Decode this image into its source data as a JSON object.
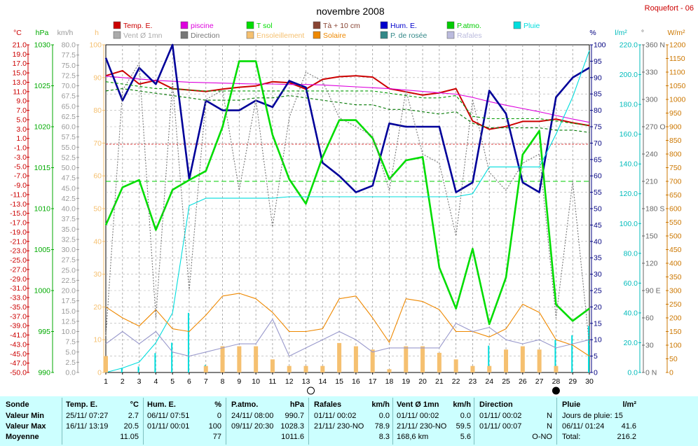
{
  "header": {
    "title": "novembre 2008",
    "station": "Roquefort - 06"
  },
  "chart_data": {
    "type": "line",
    "title": "novembre 2008",
    "x": [
      1,
      2,
      3,
      4,
      5,
      6,
      7,
      8,
      9,
      10,
      11,
      12,
      13,
      14,
      15,
      16,
      17,
      18,
      19,
      20,
      21,
      22,
      23,
      24,
      25,
      26,
      27,
      28,
      29,
      30
    ],
    "xticks": [
      "1",
      "2",
      "3",
      "4",
      "5",
      "6",
      "7",
      "8",
      "9",
      "10",
      "11",
      "12",
      "13",
      "14",
      "15",
      "16",
      "17",
      "18",
      "19",
      "20",
      "21",
      "22",
      "23",
      "24",
      "25",
      "26",
      "27",
      "28",
      "29",
      "30"
    ],
    "axes": {
      "temp": {
        "unit": "°C",
        "range": [
          -50,
          21
        ],
        "color": "#cc0000",
        "ticks": [
          "21.0",
          "19.0",
          "17.0",
          "15.0",
          "13.0",
          "11.0",
          "9.0",
          "7.0",
          "5.0",
          "3.0",
          "1.0",
          "-1.0",
          "-3.0",
          "-5.0",
          "-7.0",
          "-9.0",
          "-11.0",
          "-13.0",
          "-15.0",
          "-17.0",
          "-19.0",
          "-21.0",
          "-23.0",
          "-25.0",
          "-27.0",
          "-29.0",
          "-31.0",
          "-33.0",
          "-35.0",
          "-37.0",
          "-39.0",
          "-41.0",
          "-43.0",
          "-45.0",
          "-47.0",
          "-50.0"
        ]
      },
      "pressure": {
        "unit": "hPa",
        "range": [
          990,
          1030
        ],
        "color": "#00aa00",
        "ticks": [
          "1030",
          "1025",
          "1020",
          "1015",
          "1010",
          "1005",
          "1000",
          "995",
          "990"
        ]
      },
      "wind": {
        "unit": "km/h",
        "range": [
          0,
          80
        ],
        "color": "#999999",
        "ticks": [
          "80.0",
          "77.5",
          "75.0",
          "72.5",
          "70.0",
          "67.5",
          "65.0",
          "62.5",
          "60.0",
          "57.5",
          "55.0",
          "52.5",
          "50.0",
          "47.5",
          "45.0",
          "42.5",
          "40.0",
          "37.5",
          "35.0",
          "32.5",
          "30.0",
          "27.5",
          "25.0",
          "22.5",
          "20.0",
          "17.5",
          "15.0",
          "12.5",
          "10.0",
          "7.5",
          "5.0",
          "2.5",
          "0.0"
        ]
      },
      "sunshine": {
        "unit": "h",
        "range": [
          0,
          100
        ],
        "color": "#f5c070",
        "ticks": [
          "100",
          "90",
          "80",
          "70",
          "60",
          "50",
          "40",
          "30",
          "20",
          "10",
          "0"
        ]
      },
      "humidity": {
        "unit": "%",
        "range": [
          0,
          100
        ],
        "color": "#000080",
        "ticks": [
          "100",
          "95",
          "90",
          "85",
          "80",
          "75",
          "70",
          "65",
          "60",
          "55",
          "50",
          "45",
          "40",
          "35",
          "30",
          "25",
          "20",
          "15",
          "10",
          "5",
          "0"
        ]
      },
      "rain": {
        "unit": "l/m²",
        "range": [
          0,
          220
        ],
        "color": "#00bbbb",
        "ticks": [
          "220.0",
          "200.0",
          "180.0",
          "160.0",
          "140.0",
          "120.0",
          "100.0",
          "80.0",
          "60.0",
          "40.0",
          "20.0",
          "0.0"
        ]
      },
      "direction": {
        "unit": "°",
        "range": [
          0,
          360
        ],
        "color": "#666666",
        "ticks": [
          "360 N",
          "330",
          "300",
          "270 O",
          "240",
          "210",
          "180 S",
          "150",
          "120",
          "90 E",
          "60",
          "30",
          "0 N"
        ]
      },
      "solar": {
        "unit": "W/m²",
        "range": [
          0,
          1200
        ],
        "color": "#cc7700",
        "ticks": [
          "1200",
          "1150",
          "1100",
          "1050",
          "1000",
          "950",
          "900",
          "850",
          "800",
          "750",
          "700",
          "650",
          "600",
          "550",
          "500",
          "450",
          "400",
          "350",
          "300",
          "250",
          "200",
          "150",
          "100",
          "50",
          "0"
        ]
      }
    },
    "legend": [
      {
        "label": "Temp. E.",
        "color": "#cc0000"
      },
      {
        "label": "piscine",
        "color": "#dd00dd"
      },
      {
        "label": "T sol",
        "color": "#00dd00"
      },
      {
        "label": "Tà + 10 cm",
        "color": "#884433"
      },
      {
        "label": "Hum. E.",
        "color": "#0000cc"
      },
      {
        "label": "P.atmo.",
        "color": "#00cc00"
      },
      {
        "label": "Pluie",
        "color": "#00dddd"
      },
      {
        "label": "Vent Ø 1mn",
        "color": "#aaaaaa"
      },
      {
        "label": "Direction",
        "color": "#777777"
      },
      {
        "label": "Ensoleillement",
        "color": "#f5c070"
      },
      {
        "label": "Solaire",
        "color": "#ee8800"
      },
      {
        "label": "P. de rosée",
        "color": "#338888"
      },
      {
        "label": "Rafales",
        "color": "#bbbbdd"
      }
    ],
    "series": [
      {
        "name": "Temp. E.",
        "axis": "temp",
        "color": "#cc0000",
        "values": [
          14.3,
          15.4,
          12.5,
          13.3,
          11.5,
          11.2,
          10.9,
          11.4,
          11.8,
          12.1,
          13.0,
          12.8,
          11.4,
          13.5,
          14.1,
          14.3,
          14.0,
          11.5,
          10.8,
          10.1,
          10.6,
          11.5,
          4.5,
          2.7,
          3.3,
          4.4,
          4.4,
          4.9,
          4.1,
          3.5
        ]
      },
      {
        "name": "piscine",
        "axis": "temp",
        "color": "#dd00dd",
        "values": [
          14.2,
          13.9,
          13.6,
          13.3,
          13.1,
          12.9,
          12.8,
          12.7,
          12.6,
          12.5,
          12.5,
          12.4,
          12.4,
          12.3,
          12.1,
          11.9,
          11.7,
          11.5,
          11.2,
          10.9,
          10.6,
          10.3,
          9.6,
          8.7,
          7.9,
          7.2,
          6.5,
          5.7,
          4.9,
          4.2
        ]
      },
      {
        "name": "Hum. E.",
        "axis": "humidity",
        "color": "#000099",
        "values": [
          96,
          83,
          93,
          88,
          100,
          59,
          83,
          80,
          80,
          83,
          81,
          89,
          87,
          64,
          60,
          55,
          57,
          76,
          75,
          75,
          75,
          55,
          58,
          86,
          79,
          58,
          55,
          84,
          90,
          93
        ]
      },
      {
        "name": "P.atmo.",
        "axis": "pressure",
        "color": "#00dd00",
        "values": [
          1008,
          1012.6,
          1013.5,
          1007.4,
          1012.3,
          1013.5,
          1014.6,
          1020,
          1028,
          1028,
          1019,
          1013.6,
          1010.6,
          1016.3,
          1020.8,
          1020.8,
          1018.6,
          1013.6,
          1015.9,
          1016.3,
          1002.8,
          997.8,
          1005.1,
          995.9,
          1001.6,
          1016.6,
          1019.5,
          998.3,
          996.3,
          997.8
        ]
      },
      {
        "name": "Pluie",
        "axis": "rain",
        "color": "#00dddd",
        "values": [
          0,
          3,
          7,
          20,
          40,
          112,
          117,
          117,
          117,
          117,
          117,
          118,
          118,
          118,
          118,
          118,
          118,
          118,
          118,
          118,
          118,
          118,
          120,
          138,
          138,
          138,
          138,
          160,
          185,
          216.2
        ]
      },
      {
        "name": "Ensoleillement",
        "axis": "sunshine",
        "color": "#f5c070",
        "type": "bar",
        "values": [
          5,
          0,
          0,
          0,
          0,
          0,
          2,
          8,
          8,
          8,
          4,
          2,
          2,
          2,
          9,
          8,
          7,
          1,
          8,
          8,
          6,
          4,
          2,
          2,
          7,
          8,
          7,
          2,
          0,
          0
        ]
      },
      {
        "name": "Solaire",
        "axis": "solar",
        "color": "#ee8800",
        "values": [
          240,
          200,
          170,
          230,
          160,
          150,
          210,
          280,
          290,
          270,
          220,
          150,
          150,
          160,
          270,
          280,
          200,
          110,
          270,
          260,
          230,
          150,
          150,
          130,
          160,
          250,
          220,
          120,
          100,
          60
        ]
      },
      {
        "name": "Rafales",
        "axis": "wind",
        "color": "#9999cc",
        "values": [
          7,
          10,
          7,
          10,
          5,
          4,
          5,
          6,
          7,
          7,
          13,
          4,
          6,
          8,
          10,
          8,
          5,
          6,
          6,
          6,
          6,
          12,
          10,
          11,
          8,
          7,
          8,
          6,
          7,
          8
        ]
      },
      {
        "name": "T sol",
        "axis": "temp",
        "color": "#009900",
        "style": "dashed",
        "values": [
          13,
          12.5,
          12,
          11.5,
          11.5,
          11.2,
          11,
          11,
          11,
          11,
          11,
          11,
          11,
          11,
          11,
          11,
          11,
          10.5,
          10,
          9.5,
          9.5,
          10,
          5.5,
          5,
          5,
          5,
          5,
          4.5,
          4,
          3.5
        ]
      },
      {
        "name": "P. de rosée",
        "axis": "temp",
        "color": "#007700",
        "style": "dashed",
        "values": [
          11,
          11.5,
          11,
          10.5,
          10,
          9.5,
          9,
          9,
          9,
          9.5,
          9.5,
          10,
          9.5,
          9,
          8.5,
          8,
          8,
          7,
          7,
          6.5,
          6,
          6.5,
          4,
          3,
          3,
          3,
          3,
          2.5,
          2.5,
          2
        ]
      },
      {
        "name": "Direction",
        "axis": "direction",
        "color": "#777777",
        "style": "dotted",
        "values": [
          40,
          310,
          340,
          60,
          320,
          90,
          300,
          310,
          200,
          300,
          160,
          280,
          330,
          320,
          280,
          270,
          260,
          200,
          310,
          240,
          230,
          150,
          300,
          220,
          200,
          230,
          240,
          60,
          210,
          30
        ]
      }
    ],
    "xlim": [
      1,
      30
    ],
    "grid": true
  },
  "summary": {
    "sonde": {
      "header": "Sonde",
      "rows": [
        "Valeur Min",
        "Valeur Max",
        "Moyenne"
      ]
    },
    "temp": {
      "header": "Temp. E.",
      "unit": "°C",
      "rows": [
        {
          "date": "25/11/  07:27",
          "value": "2.7"
        },
        {
          "date": "16/11/  13:19",
          "value": "20.5"
        },
        {
          "date": "",
          "value": "11.05"
        }
      ]
    },
    "humidity": {
      "header": "Hum. E.",
      "unit": "%",
      "rows": [
        {
          "date": "06/11/  07:51",
          "value": "0"
        },
        {
          "date": "01/11/  00:01",
          "value": "100"
        },
        {
          "date": "",
          "value": "77"
        }
      ]
    },
    "pressure": {
      "header": "P.atmo.",
      "unit": "hPa",
      "rows": [
        {
          "date": "24/11/  08:00",
          "value": "990.7"
        },
        {
          "date": "09/11/  20:30",
          "value": "1028.3"
        },
        {
          "date": "",
          "value": "1011.6"
        }
      ]
    },
    "gusts": {
      "header": "Rafales",
      "unit": "km/h",
      "rows": [
        {
          "date": "01/11/  00:02",
          "value": "0.0"
        },
        {
          "date": "21/11/  230-NO",
          "value": "78.9"
        },
        {
          "date": "",
          "value": "8.3"
        }
      ]
    },
    "wind": {
      "header": "Vent Ø 1mn",
      "unit": "km/h",
      "rows": [
        {
          "date": "01/11/  00:02",
          "value": "0.0"
        },
        {
          "date": "21/11/  230-NO",
          "value": "59.5"
        },
        {
          "date": "168,6 km",
          "value": "5.6"
        }
      ]
    },
    "direction": {
      "header": "Direction",
      "rows": [
        {
          "date": "01/11/  00:02",
          "value": "N"
        },
        {
          "date": "01/11/  00:07",
          "value": "N"
        },
        {
          "date": "",
          "value": "O-NO"
        }
      ]
    },
    "rain": {
      "header": "Pluie",
      "unit": "l/m²",
      "rows": [
        {
          "date": "Jours de pluie: 15",
          "value": ""
        },
        {
          "date": "06/11/  01:24",
          "value": "41.6"
        },
        {
          "date": "Total:",
          "value": "216.2"
        }
      ]
    }
  }
}
